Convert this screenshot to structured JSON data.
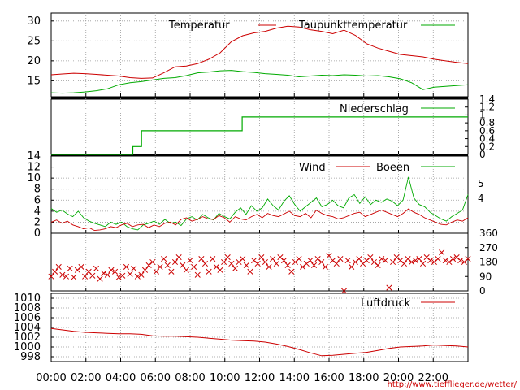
{
  "chart_data": [
    {
      "type": "line",
      "panel": "temperature",
      "ylim": [
        11,
        32
      ],
      "yticks": [
        15,
        20,
        25,
        30
      ],
      "grid": true,
      "legend_position": "top-right",
      "series": [
        {
          "name": "Temperatur",
          "color": "#cc0000",
          "values": [
            16.5,
            16.7,
            16.9,
            16.8,
            16.6,
            16.4,
            16.2,
            15.8,
            15.6,
            15.7,
            17.0,
            18.5,
            18.7,
            19.3,
            20.4,
            22.0,
            24.8,
            26.3,
            27.0,
            27.4,
            28.2,
            28.7,
            28.5,
            27.8,
            27.4,
            26.8,
            27.7,
            26.4,
            24.3,
            23.2,
            22.4,
            21.6,
            21.3,
            21.0,
            20.4,
            20.0,
            19.6,
            19.3
          ]
        },
        {
          "name": "Taupunkttemperatur",
          "color": "#00aa00",
          "values": [
            12.0,
            11.9,
            12.0,
            12.2,
            12.5,
            13.0,
            14.0,
            14.5,
            14.8,
            15.2,
            15.6,
            15.8,
            16.3,
            17.0,
            17.2,
            17.5,
            17.6,
            17.3,
            17.1,
            16.8,
            16.6,
            16.4,
            16.0,
            16.2,
            16.4,
            16.3,
            16.5,
            16.4,
            16.2,
            16.3,
            16.0,
            15.5,
            14.5,
            12.8,
            13.4,
            13.6,
            13.8,
            14.0
          ]
        }
      ]
    },
    {
      "type": "line",
      "panel": "precipitation",
      "ylim": [
        0,
        1.4
      ],
      "yticks": [
        "0",
        "0.2",
        "0.4",
        "0.6",
        "0.8",
        "1",
        "1.2",
        "1.4"
      ],
      "grid": false,
      "legend_position": "top-right",
      "series": [
        {
          "name": "Niederschlag",
          "color": "#00aa00",
          "steps": [
            [
              0,
              0
            ],
            [
              4.7,
              0
            ],
            [
              4.7,
              0.2
            ],
            [
              5.2,
              0.2
            ],
            [
              5.2,
              0.6
            ],
            [
              11.0,
              0.6
            ],
            [
              11.0,
              0.95
            ],
            [
              24,
              0.95
            ]
          ]
        }
      ]
    },
    {
      "type": "line",
      "panel": "wind",
      "ylim": [
        0,
        14
      ],
      "yticks": [
        0,
        2,
        4,
        6,
        8,
        10,
        12,
        14
      ],
      "right_ticks": [
        "4",
        "5"
      ],
      "grid": true,
      "legend_position": "top-right",
      "series": [
        {
          "name": "Wind",
          "color": "#cc0000",
          "values": [
            2.0,
            2.4,
            1.8,
            2.2,
            1.5,
            1.2,
            0.8,
            1.0,
            0.5,
            0.6,
            0.8,
            1.2,
            1.0,
            1.5,
            1.8,
            1.2,
            1.5,
            1.6,
            1.0,
            1.5,
            1.2,
            1.8,
            2.0,
            1.5,
            2.5,
            2.8,
            2.2,
            2.5,
            3.0,
            2.6,
            2.5,
            3.2,
            2.8,
            2.0,
            3.0,
            2.6,
            2.4,
            3.0,
            3.4,
            2.8,
            3.6,
            3.2,
            3.0,
            3.5,
            4.0,
            3.2,
            3.0,
            3.6,
            2.8,
            4.2,
            3.6,
            3.2,
            3.0,
            2.6,
            2.8,
            3.2,
            3.6,
            3.8,
            3.0,
            3.4,
            3.8,
            4.2,
            3.8,
            3.4,
            3.0,
            3.6,
            4.4,
            3.8,
            3.4,
            2.8,
            2.4,
            2.0,
            1.6,
            1.5,
            2.0,
            2.4,
            2.2,
            2.8
          ]
        },
        {
          "name": "Boeen",
          "color": "#00aa00",
          "values": [
            4.5,
            3.8,
            4.2,
            3.5,
            3.0,
            4.0,
            2.8,
            2.2,
            1.8,
            1.5,
            1.2,
            2.0,
            1.6,
            2.0,
            1.2,
            0.8,
            0.6,
            1.5,
            1.8,
            2.2,
            1.6,
            2.5,
            1.8,
            2.0,
            1.4,
            2.6,
            3.0,
            2.4,
            3.4,
            2.8,
            2.4,
            3.6,
            3.0,
            2.6,
            3.8,
            4.6,
            3.4,
            5.0,
            4.0,
            4.6,
            6.2,
            5.0,
            4.2,
            5.8,
            6.8,
            5.2,
            4.0,
            4.8,
            5.6,
            6.4,
            4.8,
            5.2,
            6.0,
            5.0,
            4.6,
            6.4,
            7.0,
            5.4,
            6.6,
            5.2,
            6.0,
            5.6,
            6.2,
            5.8,
            5.0,
            6.0,
            10.2,
            6.4,
            5.2,
            4.8,
            3.8,
            3.2,
            2.6,
            2.2,
            3.0,
            3.6,
            4.2,
            7.0
          ]
        }
      ]
    },
    {
      "type": "scatter",
      "panel": "wind_direction",
      "ylim": [
        0,
        360
      ],
      "right_ticks": [
        "0",
        "90",
        "180",
        "270",
        "360"
      ],
      "series": [
        {
          "name": "",
          "color": "#cc0000",
          "marker": "x",
          "values": [
            90,
            120,
            150,
            100,
            90,
            140,
            85,
            130,
            150,
            90,
            120,
            95,
            140,
            75,
            110,
            100,
            130,
            120,
            85,
            95,
            150,
            105,
            140,
            90,
            100,
            130,
            160,
            180,
            120,
            150,
            200,
            160,
            120,
            180,
            210,
            160,
            130,
            190,
            150,
            100,
            200,
            170,
            120,
            200,
            150,
            130,
            180,
            210,
            170,
            140,
            180,
            200,
            160,
            120,
            190,
            170,
            210,
            180,
            150,
            200,
            170,
            210,
            190,
            160,
            120,
            180,
            200,
            150,
            170,
            190,
            160,
            200,
            180,
            150,
            220,
            190,
            170,
            200,
            0,
            190,
            150,
            180,
            200,
            170,
            190,
            210,
            180,
            160,
            200,
            190,
            20,
            180,
            210,
            190,
            170,
            200,
            180,
            190,
            200,
            170,
            210,
            190,
            180,
            200,
            240,
            190,
            180,
            200,
            210,
            190,
            180,
            200
          ]
        }
      ]
    },
    {
      "type": "line",
      "panel": "pressure",
      "ylim": [
        997,
        1011
      ],
      "yticks": [
        998,
        1000,
        1002,
        1004,
        1006,
        1008,
        1010
      ],
      "grid": true,
      "legend_position": "top-right",
      "series": [
        {
          "name": "Luftdruck",
          "color": "#cc0000",
          "values": [
            1003.8,
            1003.5,
            1003.2,
            1003.0,
            1002.9,
            1002.8,
            1002.7,
            1002.7,
            1002.6,
            1002.3,
            1002.2,
            1002.2,
            1002.1,
            1002.0,
            1001.8,
            1001.6,
            1001.4,
            1001.3,
            1001.2,
            1001.0,
            1000.6,
            1000.1,
            999.5,
            998.8,
            998.2,
            998.3,
            998.5,
            998.7,
            998.9,
            999.3,
            999.7,
            1000.0,
            1000.1,
            1000.2,
            1000.4,
            1000.3,
            1000.2,
            1000.0
          ]
        }
      ]
    }
  ],
  "x_ticks": [
    "00:00",
    "02:00",
    "04:00",
    "06:00",
    "08:00",
    "10:00",
    "12:00",
    "14:00",
    "16:00",
    "18:00",
    "20:00",
    "22:00"
  ],
  "footer": {
    "url": "http://www.tiefflieger.de/wetter/"
  }
}
